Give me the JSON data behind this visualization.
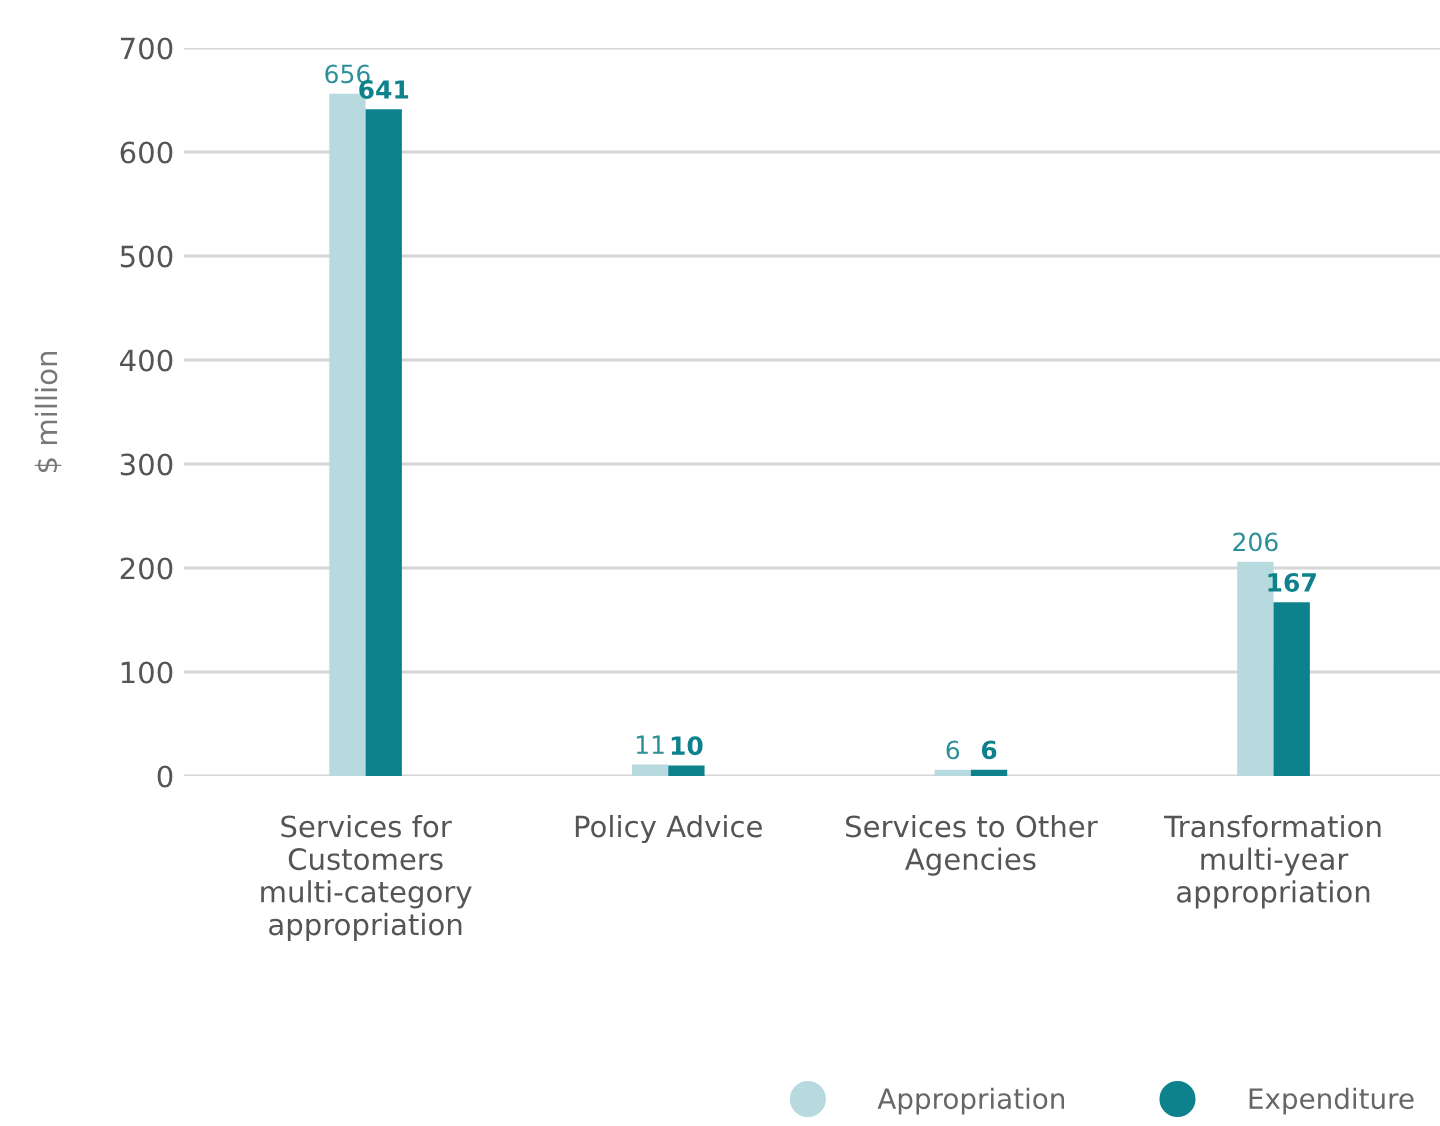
{
  "chart_data": {
    "type": "bar",
    "ylabel": "$ million",
    "categories": [
      "Services for\nCustomers\nmulti-category\nappropriation",
      "Policy Advice",
      "Services to Other\nAgencies",
      "Transformation\nmulti-year\nappropriation"
    ],
    "series": [
      {
        "name": "Appropriation",
        "color": "#b7dadf",
        "values": [
          656,
          11,
          6,
          206
        ]
      },
      {
        "name": "Expenditure",
        "color": "#0e828c",
        "values": [
          641,
          10,
          6,
          167
        ]
      }
    ],
    "ylim": [
      0,
      700
    ],
    "yticks": [
      0,
      100,
      200,
      300,
      400,
      500,
      600,
      700
    ],
    "grid": "y",
    "legend": "bottom right",
    "data_labels": true
  }
}
